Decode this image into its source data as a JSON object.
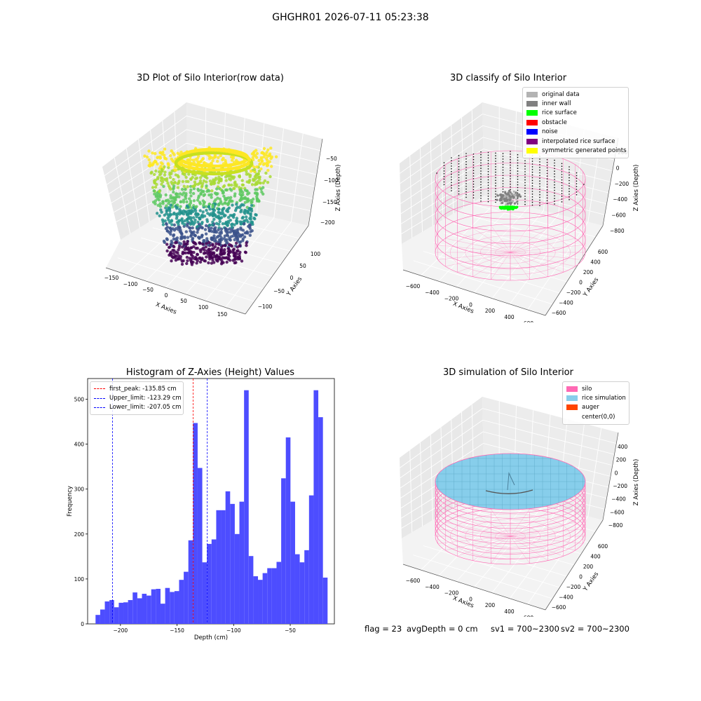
{
  "suptitle": "GHGHR01 2026-07-11 05:23:38",
  "colors": {
    "silo": "#ff69b4",
    "rice": "#87ceeb",
    "auger": "#ff4500",
    "original": "#b3b3b3",
    "inner_wall": "#808080",
    "rice_surface": "#00ff00",
    "obstacle": "#ff0000",
    "noise": "#0000ff",
    "interp": "#800080",
    "symmetric": "#ffff00",
    "hist_bar": "#4d4dff"
  },
  "panels": {
    "raw": {
      "title": "3D Plot of Silo Interior(row data)",
      "xlabel": "X Axies",
      "ylabel": "Y Axies",
      "zlabel": "Z Axies (Depth)",
      "xticks": [
        "−150",
        "−100",
        "−50",
        "0",
        "50",
        "100",
        "150"
      ],
      "yticks": [
        "100",
        "50",
        "0",
        "−50",
        "−100"
      ],
      "zticks": [
        "−50",
        "−100",
        "−150",
        "−200"
      ]
    },
    "classify": {
      "title": "3D classify of Silo Interior",
      "xlabel": "X Axies",
      "ylabel": "Y Axies",
      "zlabel": "Z Axies (Depth)",
      "xticks": [
        "−600",
        "−400",
        "−200",
        "0",
        "200",
        "400",
        "600"
      ],
      "yticks": [
        "600",
        "400",
        "200",
        "0",
        "−200",
        "−400",
        "−600"
      ],
      "zticks": [
        "200",
        "0",
        "−200",
        "−400",
        "−600",
        "−800"
      ],
      "legend": [
        {
          "label": "original data",
          "color": "#b3b3b3"
        },
        {
          "label": "inner wall",
          "color": "#808080"
        },
        {
          "label": "rice surface",
          "color": "#00ff00"
        },
        {
          "label": "obstacle",
          "color": "#ff0000"
        },
        {
          "label": "noise",
          "color": "#0000ff"
        },
        {
          "label": "interpolated rice surface",
          "color": "#800080"
        },
        {
          "label": "symmetric generated points",
          "color": "#ffff00"
        }
      ]
    },
    "simulation": {
      "title": "3D simulation of Silo Interior",
      "xlabel": "X Axies",
      "ylabel": "Y Axies",
      "zlabel": "Z Axies (Depth)",
      "xticks": [
        "−600",
        "−400",
        "−200",
        "0",
        "200",
        "400",
        "600"
      ],
      "yticks": [
        "600",
        "400",
        "200",
        "0",
        "−200",
        "−400",
        "−600"
      ],
      "zticks": [
        "400",
        "200",
        "0",
        "−200",
        "−400",
        "−600",
        "−800"
      ],
      "legend": [
        {
          "label": "silo",
          "color": "#ff69b4"
        },
        {
          "label": "rice simulation",
          "color": "#87ceeb"
        },
        {
          "label": "auger",
          "color": "#ff4500"
        },
        {
          "label": "center(0,0)",
          "color": ""
        }
      ]
    }
  },
  "chart_data": [
    {
      "type": "bar",
      "title": "Histogram of Z-Axies (Height) Values",
      "xlabel": "Depth (cm)",
      "ylabel": "Frequency",
      "xlim": [
        -229,
        -11
      ],
      "ylim": [
        0,
        546
      ],
      "bin_start": -222,
      "bin_width": 4.1,
      "values": [
        20,
        32,
        50,
        53,
        37,
        47,
        48,
        53,
        70,
        57,
        67,
        63,
        77,
        78,
        45,
        80,
        71,
        73,
        98,
        116,
        186,
        447,
        347,
        137,
        178,
        188,
        253,
        253,
        295,
        267,
        200,
        272,
        520,
        151,
        106,
        98,
        113,
        124,
        124,
        138,
        324,
        415,
        272,
        155,
        137,
        164,
        286,
        520,
        460,
        103
      ],
      "xticks": [
        {
          "value": -200,
          "label": "−200"
        },
        {
          "value": -150,
          "label": "−150"
        },
        {
          "value": -100,
          "label": "−100"
        },
        {
          "value": -50,
          "label": "−50"
        }
      ],
      "yticks": [
        0,
        100,
        200,
        300,
        400,
        500
      ],
      "vlines": [
        {
          "value": -135.85,
          "label": "first_peak: -135.85 cm",
          "color": "#ff0000"
        },
        {
          "value": -123.29,
          "label": "Upper_limit: -123.29 cm",
          "color": "#0000ff"
        },
        {
          "value": -207.05,
          "label": "Lower_limit: -207.05 cm",
          "color": "#0000ff"
        }
      ]
    }
  ],
  "footer": {
    "flag": "flag = 23",
    "avg": "avgDepth = 0 cm",
    "sv1": "sv1 = 700~2300",
    "sv2": "sv2 = 700~2300"
  }
}
